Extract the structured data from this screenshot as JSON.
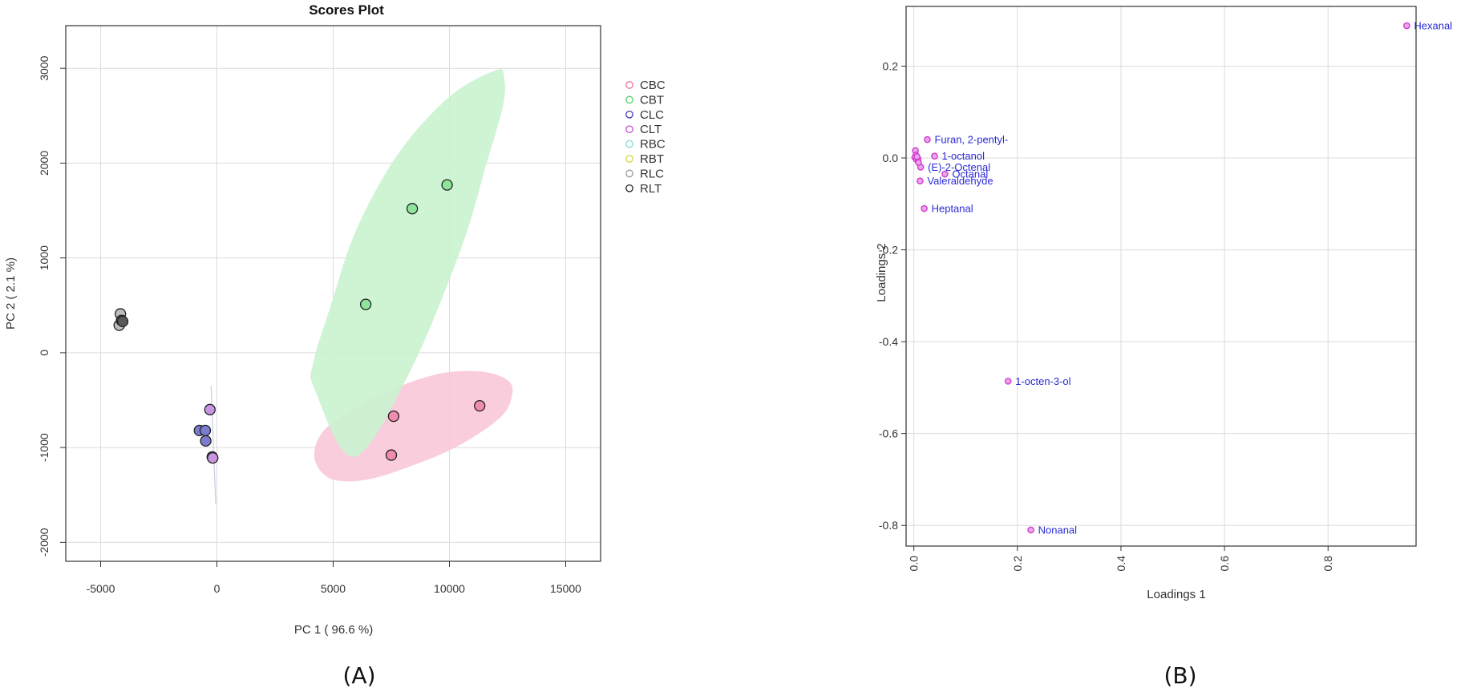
{
  "chart_data": [
    {
      "type": "scatter",
      "title": "Scores Plot",
      "xlabel": "PC 1 ( 96.6 %)",
      "ylabel": "PC 2 ( 2.1 %)",
      "xlim": [
        -6500,
        16500
      ],
      "ylim": [
        -2200,
        3450
      ],
      "xticks": [
        -5000,
        0,
        5000,
        10000,
        15000
      ],
      "yticks": [
        -2000,
        -1000,
        0,
        1000,
        2000,
        3000
      ],
      "grid": true,
      "legend": "right",
      "caption": "(A)",
      "series": [
        {
          "name": "CBC",
          "color": "#ea6f9c",
          "fill": "#f08cae",
          "points": [
            [
              7600,
              -670
            ],
            [
              11300,
              -560
            ],
            [
              7500,
              -1080
            ]
          ],
          "ellipse": {
            "fill": "#f9c8d8",
            "center": [
              8950,
              -760
            ],
            "outline": [
              [
                12500,
                -290
              ],
              [
                11400,
                -200
              ],
              [
                9600,
                -220
              ],
              [
                7400,
                -400
              ],
              [
                5600,
                -640
              ],
              [
                4500,
                -850
              ],
              [
                4200,
                -1120
              ],
              [
                4900,
                -1330
              ],
              [
                6400,
                -1340
              ],
              [
                8300,
                -1200
              ],
              [
                10400,
                -980
              ],
              [
                12200,
                -680
              ],
              [
                12700,
                -440
              ]
            ]
          }
        },
        {
          "name": "CBT",
          "color": "#5ccd6c",
          "fill": "#8de59b",
          "points": [
            [
              8400,
              1520
            ],
            [
              9900,
              1770
            ],
            [
              6400,
              510
            ]
          ],
          "ellipse": {
            "fill": "#c9f3cf",
            "center": [
              8250,
              1270
            ],
            "outline": [
              [
                12350,
                2900
              ],
              [
                12300,
                2600
              ],
              [
                11600,
                2000
              ],
              [
                10500,
                1100
              ],
              [
                8300,
                -200
              ],
              [
                5900,
                -1100
              ],
              [
                4200,
                -380
              ],
              [
                4150,
                -100
              ],
              [
                4900,
                500
              ],
              [
                6000,
                1300
              ],
              [
                7800,
                2100
              ],
              [
                10000,
                2700
              ],
              [
                12000,
                2980
              ]
            ]
          }
        },
        {
          "name": "CLC",
          "color": "#3c3cb0",
          "fill": "#7b7bd0",
          "points": [
            [
              -750,
              -820
            ],
            [
              -500,
              -820
            ],
            [
              -480,
              -930
            ]
          ]
        },
        {
          "name": "CLT",
          "color": "#c44fd4",
          "fill": "#c694e0",
          "points": [
            [
              -300,
              -600
            ],
            [
              -200,
              -1100
            ],
            [
              -180,
              -1110
            ]
          ]
        },
        {
          "name": "RBC",
          "color": "#80ddd8",
          "fill": "#b6ecea",
          "points": []
        },
        {
          "name": "RBT",
          "color": "#d6d640",
          "fill": "#eaea90",
          "points": []
        },
        {
          "name": "RLC",
          "color": "#999999",
          "fill": "#bdbdbd",
          "points": [
            [
              -4150,
              410
            ],
            [
              -4200,
              290
            ]
          ]
        },
        {
          "name": "RLT",
          "color": "#222222",
          "fill": "#5a5a5a",
          "points": [
            [
              -4100,
              340
            ],
            [
              -4050,
              330
            ]
          ]
        }
      ]
    },
    {
      "type": "scatter",
      "title": "",
      "xlabel": "Loadings 1",
      "ylabel": "Loadings 2",
      "xlim": [
        -0.015,
        0.97
      ],
      "ylim": [
        -0.845,
        0.33
      ],
      "xticks": [
        0.0,
        0.2,
        0.4,
        0.6,
        0.8
      ],
      "yticks": [
        -0.8,
        -0.6,
        -0.4,
        -0.2,
        0.0,
        0.2
      ],
      "tick_labels_x": [
        "0.0",
        "0.2",
        "0.4",
        "0.6",
        "0.8"
      ],
      "tick_labels_y": [
        "-0.8",
        "-0.6",
        "-0.4",
        "-0.2",
        "0.0",
        "0.2"
      ],
      "grid": true,
      "caption": "(B)",
      "point_color": "#d23cd2",
      "points": [
        {
          "x": 0.952,
          "y": 0.288,
          "label": "Hexanal"
        },
        {
          "x": 0.026,
          "y": 0.04,
          "label": "Furan, 2-pentyl-"
        },
        {
          "x": 0.04,
          "y": 0.004,
          "label": "1-octanol"
        },
        {
          "x": 0.013,
          "y": -0.02,
          "label": "(E)-2-Octenal"
        },
        {
          "x": 0.06,
          "y": -0.035,
          "label": "Octanal"
        },
        {
          "x": 0.012,
          "y": -0.05,
          "label": "Valeraldehyde"
        },
        {
          "x": 0.02,
          "y": -0.11,
          "label": "Heptanal"
        },
        {
          "x": 0.182,
          "y": -0.486,
          "label": "1-octen-3-ol"
        },
        {
          "x": 0.226,
          "y": -0.81,
          "label": "Nonanal"
        },
        {
          "x": 0.003,
          "y": 0.016,
          "label": ""
        },
        {
          "x": 0.004,
          "y": 0.006,
          "label": ""
        },
        {
          "x": 0.002,
          "y": 0.001,
          "label": ""
        },
        {
          "x": 0.005,
          "y": -0.003,
          "label": ""
        },
        {
          "x": 0.008,
          "y": -0.002,
          "label": ""
        },
        {
          "x": 0.006,
          "y": 0.003,
          "label": ""
        },
        {
          "x": 0.009,
          "y": -0.01,
          "label": ""
        }
      ]
    }
  ]
}
